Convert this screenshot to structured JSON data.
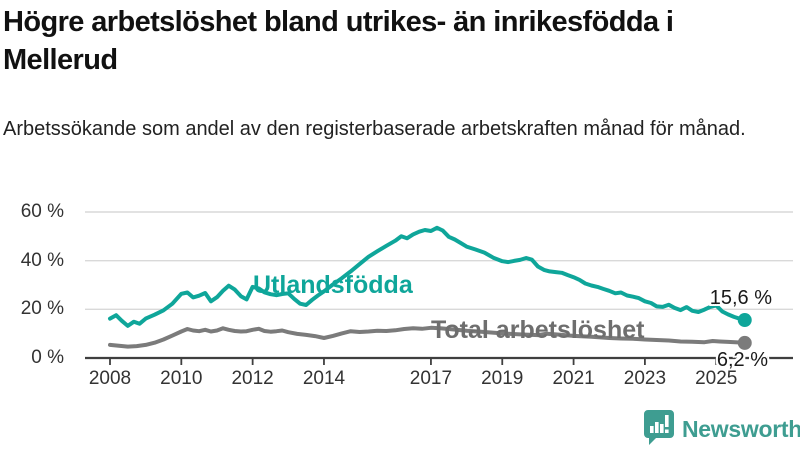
{
  "header": {
    "title": "Högre arbetslöshet bland utrikes- än inrikesfödda i Mellerud",
    "subtitle": "Arbetssökande som andel av den registerbaserade arbetskraften månad för månad."
  },
  "colors": {
    "teal": "#0FA69A",
    "gray": "#7B7B7B",
    "gray_label": "#6E6E6E",
    "grid": "#D9D9D9",
    "axis": "#3F3F3F",
    "logo_teal": "#3E9D91"
  },
  "logo": {
    "text": "Newsworthy",
    "icon": "newsworthy-speech-bubble-bar-chart-icon"
  },
  "chart_data": {
    "type": "line",
    "title": "Högre arbetslöshet bland utrikes- än inrikesfödda i Mellerud",
    "subtitle": "Arbetssökande som andel av den registerbaserade arbetskraften månad för månad.",
    "unit": "%",
    "grid": true,
    "x_axis": {
      "ticks": [
        2008,
        2010,
        2012,
        2014,
        2017,
        2019,
        2021,
        2023,
        2025
      ],
      "range": [
        2008,
        2025.8
      ]
    },
    "y_axis": {
      "range": [
        0,
        60
      ],
      "ticks": [
        {
          "value": 0,
          "label": "0 %"
        },
        {
          "value": 20,
          "label": "20 %"
        },
        {
          "value": 40,
          "label": "40 %"
        },
        {
          "value": 60,
          "label": "60 %"
        }
      ]
    },
    "series": [
      {
        "name": "Utlandsfödda",
        "color": "#0FA69A",
        "end_label": "15,6 %",
        "end_value": 15.6,
        "points": [
          [
            2008.0,
            16.2
          ],
          [
            2008.17,
            17.6
          ],
          [
            2008.33,
            15.3
          ],
          [
            2008.5,
            13.2
          ],
          [
            2008.67,
            14.9
          ],
          [
            2008.83,
            14.1
          ],
          [
            2009.0,
            16.2
          ],
          [
            2009.25,
            17.8
          ],
          [
            2009.5,
            19.6
          ],
          [
            2009.75,
            22.3
          ],
          [
            2010.0,
            26.4
          ],
          [
            2010.17,
            26.9
          ],
          [
            2010.33,
            24.9
          ],
          [
            2010.5,
            25.6
          ],
          [
            2010.67,
            26.7
          ],
          [
            2010.83,
            23.3
          ],
          [
            2011.0,
            25.0
          ],
          [
            2011.17,
            27.6
          ],
          [
            2011.33,
            29.7
          ],
          [
            2011.5,
            28.1
          ],
          [
            2011.67,
            25.4
          ],
          [
            2011.83,
            24.1
          ],
          [
            2012.0,
            29.2
          ],
          [
            2012.17,
            28.6
          ],
          [
            2012.33,
            27.0
          ],
          [
            2012.5,
            26.2
          ],
          [
            2012.67,
            25.8
          ],
          [
            2012.83,
            26.3
          ],
          [
            2013.0,
            26.6
          ],
          [
            2013.17,
            24.2
          ],
          [
            2013.33,
            22.3
          ],
          [
            2013.5,
            21.8
          ],
          [
            2013.67,
            23.9
          ],
          [
            2013.83,
            25.7
          ],
          [
            2014.0,
            27.4
          ],
          [
            2014.25,
            30.2
          ],
          [
            2014.5,
            32.8
          ],
          [
            2014.75,
            35.6
          ],
          [
            2015.0,
            38.6
          ],
          [
            2015.25,
            41.6
          ],
          [
            2015.5,
            43.9
          ],
          [
            2015.75,
            46.1
          ],
          [
            2016.0,
            48.2
          ],
          [
            2016.17,
            50.0
          ],
          [
            2016.33,
            49.2
          ],
          [
            2016.5,
            50.8
          ],
          [
            2016.67,
            51.9
          ],
          [
            2016.83,
            52.6
          ],
          [
            2017.0,
            52.2
          ],
          [
            2017.17,
            53.5
          ],
          [
            2017.33,
            52.4
          ],
          [
            2017.5,
            49.8
          ],
          [
            2017.67,
            48.7
          ],
          [
            2017.83,
            47.3
          ],
          [
            2018.0,
            45.8
          ],
          [
            2018.25,
            44.6
          ],
          [
            2018.5,
            43.3
          ],
          [
            2018.75,
            41.2
          ],
          [
            2019.0,
            39.8
          ],
          [
            2019.17,
            39.4
          ],
          [
            2019.33,
            39.9
          ],
          [
            2019.5,
            40.3
          ],
          [
            2019.67,
            41.1
          ],
          [
            2019.83,
            40.4
          ],
          [
            2020.0,
            37.6
          ],
          [
            2020.17,
            36.2
          ],
          [
            2020.33,
            35.6
          ],
          [
            2020.5,
            35.3
          ],
          [
            2020.67,
            35.0
          ],
          [
            2020.83,
            34.1
          ],
          [
            2021.0,
            33.2
          ],
          [
            2021.17,
            32.1
          ],
          [
            2021.33,
            30.6
          ],
          [
            2021.5,
            29.8
          ],
          [
            2021.67,
            29.2
          ],
          [
            2021.83,
            28.4
          ],
          [
            2022.0,
            27.6
          ],
          [
            2022.17,
            26.6
          ],
          [
            2022.33,
            26.9
          ],
          [
            2022.5,
            25.7
          ],
          [
            2022.67,
            25.2
          ],
          [
            2022.83,
            24.6
          ],
          [
            2023.0,
            23.3
          ],
          [
            2023.17,
            22.6
          ],
          [
            2023.33,
            21.2
          ],
          [
            2023.5,
            21.0
          ],
          [
            2023.67,
            21.9
          ],
          [
            2023.83,
            20.6
          ],
          [
            2024.0,
            19.7
          ],
          [
            2024.17,
            20.9
          ],
          [
            2024.33,
            19.4
          ],
          [
            2024.5,
            18.9
          ],
          [
            2024.67,
            19.9
          ],
          [
            2024.83,
            21.0
          ],
          [
            2025.0,
            21.6
          ],
          [
            2025.17,
            19.1
          ],
          [
            2025.33,
            17.9
          ],
          [
            2025.5,
            16.9
          ],
          [
            2025.67,
            16.1
          ],
          [
            2025.8,
            15.6
          ]
        ]
      },
      {
        "name": "Total arbetslöshet",
        "color": "#7B7B7B",
        "end_label": "6,2 %",
        "end_value": 6.2,
        "points": [
          [
            2008.0,
            5.4
          ],
          [
            2008.25,
            5.0
          ],
          [
            2008.5,
            4.7
          ],
          [
            2008.75,
            4.9
          ],
          [
            2009.0,
            5.4
          ],
          [
            2009.25,
            6.3
          ],
          [
            2009.5,
            7.6
          ],
          [
            2009.75,
            9.2
          ],
          [
            2010.0,
            10.9
          ],
          [
            2010.17,
            11.9
          ],
          [
            2010.33,
            11.3
          ],
          [
            2010.5,
            11.0
          ],
          [
            2010.67,
            11.6
          ],
          [
            2010.83,
            10.9
          ],
          [
            2011.0,
            11.3
          ],
          [
            2011.17,
            12.2
          ],
          [
            2011.33,
            11.6
          ],
          [
            2011.5,
            11.1
          ],
          [
            2011.67,
            10.9
          ],
          [
            2011.83,
            11.0
          ],
          [
            2012.0,
            11.6
          ],
          [
            2012.17,
            12.0
          ],
          [
            2012.33,
            11.1
          ],
          [
            2012.5,
            10.8
          ],
          [
            2012.67,
            11.0
          ],
          [
            2012.83,
            11.3
          ],
          [
            2013.0,
            10.6
          ],
          [
            2013.25,
            9.9
          ],
          [
            2013.5,
            9.5
          ],
          [
            2013.75,
            9.0
          ],
          [
            2014.0,
            8.2
          ],
          [
            2014.25,
            9.1
          ],
          [
            2014.5,
            10.1
          ],
          [
            2014.75,
            11.0
          ],
          [
            2015.0,
            10.7
          ],
          [
            2015.25,
            10.9
          ],
          [
            2015.5,
            11.2
          ],
          [
            2015.75,
            11.1
          ],
          [
            2016.0,
            11.4
          ],
          [
            2016.25,
            11.9
          ],
          [
            2016.5,
            12.2
          ],
          [
            2016.75,
            12.0
          ],
          [
            2017.0,
            12.4
          ],
          [
            2017.25,
            12.2
          ],
          [
            2017.5,
            11.9
          ],
          [
            2018.0,
            11.2
          ],
          [
            2018.5,
            10.7
          ],
          [
            2019.0,
            10.1
          ],
          [
            2019.5,
            9.7
          ],
          [
            2020.0,
            9.4
          ],
          [
            2020.25,
            10.0
          ],
          [
            2020.5,
            9.7
          ],
          [
            2021.0,
            9.1
          ],
          [
            2021.5,
            8.7
          ],
          [
            2022.0,
            8.2
          ],
          [
            2022.33,
            8.0
          ],
          [
            2022.67,
            7.9
          ],
          [
            2023.0,
            7.6
          ],
          [
            2023.33,
            7.4
          ],
          [
            2023.67,
            7.2
          ],
          [
            2024.0,
            6.8
          ],
          [
            2024.33,
            6.7
          ],
          [
            2024.67,
            6.5
          ],
          [
            2024.9,
            7.0
          ],
          [
            2025.1,
            6.8
          ],
          [
            2025.33,
            6.6
          ],
          [
            2025.6,
            6.4
          ],
          [
            2025.8,
            6.2
          ]
        ]
      }
    ]
  }
}
